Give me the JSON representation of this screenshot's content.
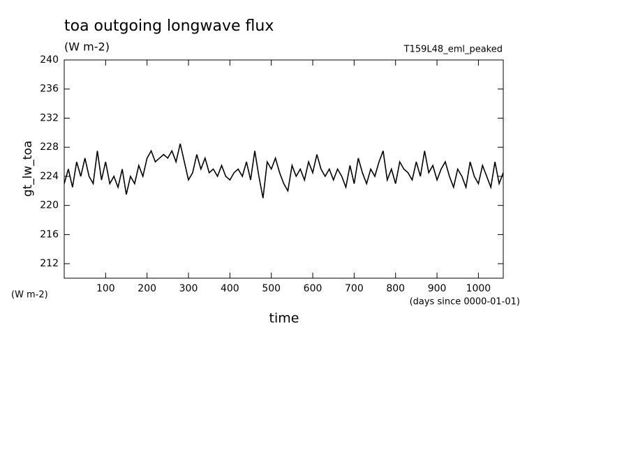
{
  "chart_data": {
    "type": "line",
    "title": "toa outgoing longwave flux",
    "subtitle": "(W m-2)",
    "annotation": "T159L48_eml_peaked",
    "y_label": "gt_lw_toa",
    "y_unit_label": "(W m-2)",
    "x_label": "time",
    "x_unit_label": "(days since 0000-01-01)",
    "x": [
      0,
      10,
      20,
      30,
      40,
      50,
      60,
      70,
      80,
      90,
      100,
      110,
      120,
      130,
      140,
      150,
      160,
      170,
      180,
      190,
      200,
      210,
      220,
      230,
      240,
      250,
      260,
      270,
      280,
      290,
      300,
      310,
      320,
      330,
      340,
      350,
      360,
      370,
      380,
      390,
      400,
      410,
      420,
      430,
      440,
      450,
      460,
      470,
      480,
      490,
      500,
      510,
      520,
      530,
      540,
      550,
      560,
      570,
      580,
      590,
      600,
      610,
      620,
      630,
      640,
      650,
      660,
      670,
      680,
      690,
      700,
      710,
      720,
      730,
      740,
      750,
      760,
      770,
      780,
      790,
      800,
      810,
      820,
      830,
      840,
      850,
      860,
      870,
      880,
      890,
      900,
      910,
      920,
      930,
      940,
      950,
      960,
      970,
      980,
      990,
      1000,
      1010,
      1020,
      1030,
      1040,
      1050,
      1060
    ],
    "series": [
      {
        "name": "gt_lw_toa",
        "color": "#000000",
        "values": [
          223,
          225,
          222.5,
          226,
          224,
          226.5,
          224,
          223,
          227.5,
          223.5,
          226,
          223,
          224,
          222.5,
          225,
          221.5,
          224,
          223,
          225.5,
          224,
          226.5,
          227.5,
          226,
          226.5,
          227,
          226.5,
          227.5,
          226,
          228.5,
          226,
          223.5,
          224.5,
          227,
          225,
          226.5,
          224.5,
          225,
          224,
          225.5,
          224,
          223.5,
          224.5,
          225,
          224,
          226,
          223.5,
          227.5,
          224,
          221,
          226,
          225,
          226.5,
          224.5,
          223,
          222,
          225.5,
          224,
          225,
          223.5,
          226,
          224.5,
          227,
          225,
          224,
          225,
          223.5,
          225,
          224,
          222.5,
          225.5,
          223,
          226.5,
          224.5,
          223,
          225,
          224,
          226,
          227.5,
          223.5,
          225,
          223,
          226,
          225,
          224.5,
          223.5,
          226,
          224,
          227.5,
          224.5,
          225.5,
          223.5,
          225,
          226,
          224,
          222.5,
          225,
          224,
          222.5,
          226,
          224,
          223,
          225.5,
          224,
          222.5,
          226,
          223,
          224.5
        ]
      }
    ],
    "xlim": [
      0,
      1060
    ],
    "ylim": [
      210,
      240
    ],
    "xticks": [
      100,
      200,
      300,
      400,
      500,
      600,
      700,
      800,
      900,
      1000
    ],
    "yticks": [
      212,
      216,
      220,
      224,
      228,
      232,
      236,
      240
    ]
  }
}
